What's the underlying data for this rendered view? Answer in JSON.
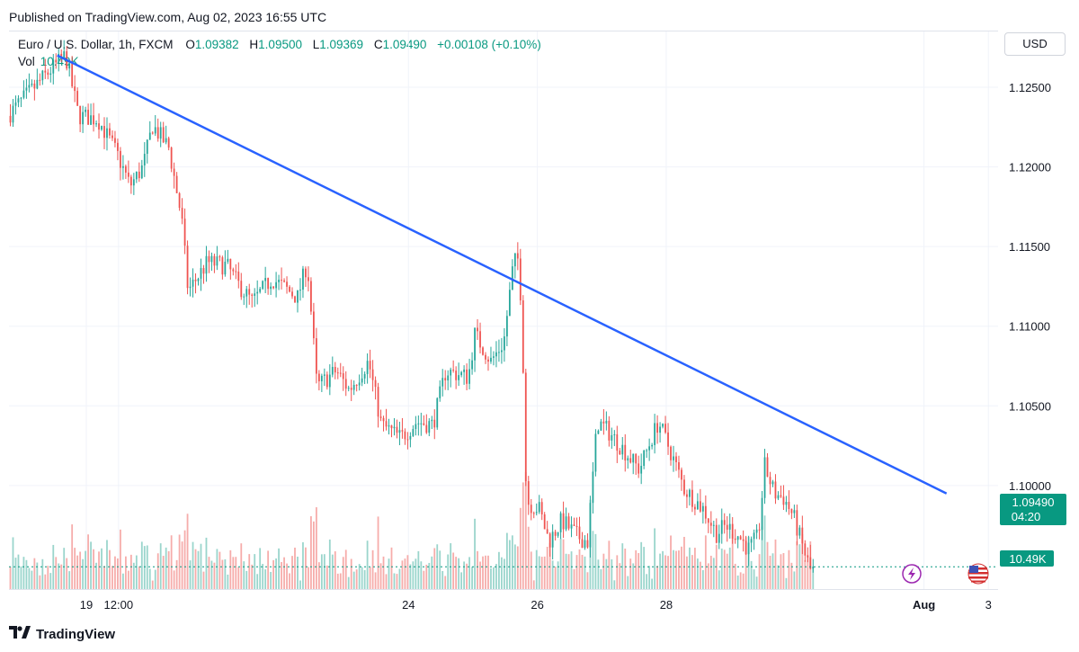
{
  "publish_line": "Published on TradingView.com, Aug 02, 2023 16:55 UTC",
  "legend": {
    "symbol": "Euro / U.S. Dollar, 1h, FXCM",
    "open_label": "O",
    "open": "1.09382",
    "high_label": "H",
    "high": "1.09500",
    "low_label": "L",
    "low": "1.09369",
    "close_label": "C",
    "close": "1.09490",
    "change": "+0.00108 (+0.10%)",
    "vol_label": "Vol",
    "vol": "10.49K"
  },
  "currency_button": "USD",
  "price_badge": {
    "price": "1.09490",
    "countdown": "04:20"
  },
  "volume_badge": "10.49K",
  "footer_brand": "TradingView",
  "icons": [
    "lightning-icon",
    "us-flag-icon",
    "tradingview-logo-icon"
  ],
  "colors": {
    "up": "#26a69a",
    "down": "#ef5350",
    "trendline": "#2962ff",
    "vol_up": "#8fd0c6",
    "vol_down": "#f5a3a1",
    "price_line": "#089981"
  },
  "chart_data": {
    "type": "candlestick",
    "symbol": "EURUSD",
    "timeframe": "1h",
    "ylim": [
      1.0935,
      1.1285
    ],
    "yticks": [
      1.125,
      1.12,
      1.115,
      1.11,
      1.105,
      1.1
    ],
    "ytick_labels": [
      "1.12500",
      "1.12000",
      "1.11500",
      "1.11000",
      "1.10500",
      "1.10000"
    ],
    "xticks": [
      "19",
      "12:00",
      "24",
      "26",
      "28",
      "Aug",
      "3"
    ],
    "x_range_days": [
      17.8,
      33.15
    ],
    "xtick_positions_days": [
      19,
      19.5,
      24,
      26,
      28,
      32,
      33
    ],
    "price_anchors": [
      [
        17.8,
        1.1232
      ],
      [
        18.4,
        1.1258
      ],
      [
        18.7,
        1.127
      ],
      [
        18.9,
        1.1232
      ],
      [
        19.2,
        1.123
      ],
      [
        19.5,
        1.1208
      ],
      [
        19.7,
        1.1188
      ],
      [
        19.9,
        1.12
      ],
      [
        20.05,
        1.1226
      ],
      [
        20.3,
        1.1212
      ],
      [
        20.5,
        1.1168
      ],
      [
        20.6,
        1.1122
      ],
      [
        20.9,
        1.114
      ],
      [
        21.2,
        1.1138
      ],
      [
        21.4,
        1.1125
      ],
      [
        21.6,
        1.1115
      ],
      [
        21.9,
        1.113
      ],
      [
        22.3,
        1.1118
      ],
      [
        22.45,
        1.114
      ],
      [
        22.6,
        1.1062
      ],
      [
        22.9,
        1.1072
      ],
      [
        23.1,
        1.106
      ],
      [
        23.4,
        1.1078
      ],
      [
        23.6,
        1.1038
      ],
      [
        23.9,
        1.103
      ],
      [
        24.15,
        1.104
      ],
      [
        24.4,
        1.1038
      ],
      [
        24.6,
        1.1072
      ],
      [
        24.95,
        1.1068
      ],
      [
        25.05,
        1.1095
      ],
      [
        25.3,
        1.1078
      ],
      [
        25.5,
        1.109
      ],
      [
        25.65,
        1.114
      ],
      [
        25.72,
        1.1142
      ],
      [
        25.78,
        1.111
      ],
      [
        25.85,
        1.099
      ],
      [
        26.05,
        1.0985
      ],
      [
        26.2,
        1.0965
      ],
      [
        26.4,
        1.0978
      ],
      [
        26.65,
        1.0968
      ],
      [
        26.8,
        1.0965
      ],
      [
        26.95,
        1.104
      ],
      [
        27.1,
        1.1035
      ],
      [
        27.35,
        1.1023
      ],
      [
        27.6,
        1.101
      ],
      [
        27.9,
        1.104
      ],
      [
        28.1,
        1.102
      ],
      [
        28.3,
        1.0998
      ],
      [
        28.6,
        1.0985
      ],
      [
        28.8,
        1.097
      ],
      [
        28.95,
        1.0975
      ],
      [
        29.15,
        1.0968
      ],
      [
        29.3,
        1.096
      ],
      [
        29.45,
        1.0968
      ],
      [
        29.55,
        1.1012
      ],
      [
        29.7,
        1.0995
      ],
      [
        29.85,
        1.0992
      ],
      [
        30.0,
        1.098
      ],
      [
        30.15,
        1.096
      ],
      [
        30.3,
        1.0942
      ]
    ],
    "bars": 300,
    "trendline": {
      "start": [
        18.55,
        1.127
      ],
      "end": [
        32.35,
        1.0995
      ]
    },
    "last_price": 1.0949
  }
}
